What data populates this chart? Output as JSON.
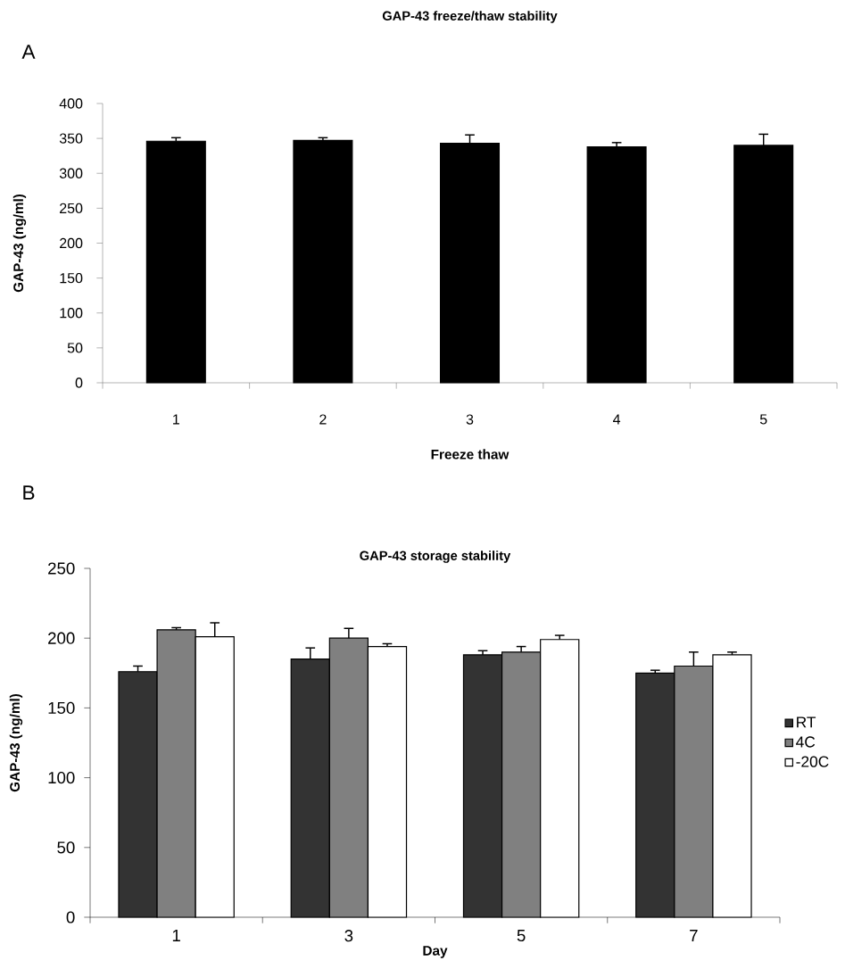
{
  "chart_data": [
    {
      "type": "bar",
      "title": "GAP-43 freeze/thaw stability",
      "xlabel": "Freeze thaw",
      "ylabel": "GAP-43 (ng/ml)",
      "annotations": [
        "A"
      ],
      "categories": [
        "1",
        "2",
        "3",
        "4",
        "5"
      ],
      "values": [
        346,
        347,
        343,
        338,
        340
      ],
      "errors": [
        5,
        4,
        12,
        6,
        16
      ],
      "color": "#000000",
      "ylim": [
        0,
        400
      ],
      "yticks": [
        0,
        50,
        100,
        150,
        200,
        250,
        300,
        350,
        400
      ]
    },
    {
      "type": "bar",
      "title": "GAP-43 storage stability",
      "xlabel": "Day",
      "ylabel": "GAP-43 (ng/ml)",
      "annotations": [
        "B"
      ],
      "categories": [
        "1",
        "3",
        "5",
        "7"
      ],
      "series": [
        {
          "name": "RT",
          "color": "#333333",
          "values": [
            176,
            185,
            188,
            175
          ],
          "errors": [
            4,
            8,
            3,
            2
          ]
        },
        {
          "name": "4C",
          "color": "#808080",
          "values": [
            206,
            200,
            190,
            180
          ],
          "errors": [
            1.5,
            7,
            4,
            10
          ]
        },
        {
          "name": "-20C",
          "color": "#ffffff",
          "values": [
            201,
            194,
            199,
            188
          ],
          "errors": [
            10,
            2,
            3,
            2
          ]
        }
      ],
      "ylim": [
        0,
        250
      ],
      "yticks": [
        0,
        50,
        100,
        150,
        200,
        250
      ],
      "legend": "right"
    }
  ]
}
